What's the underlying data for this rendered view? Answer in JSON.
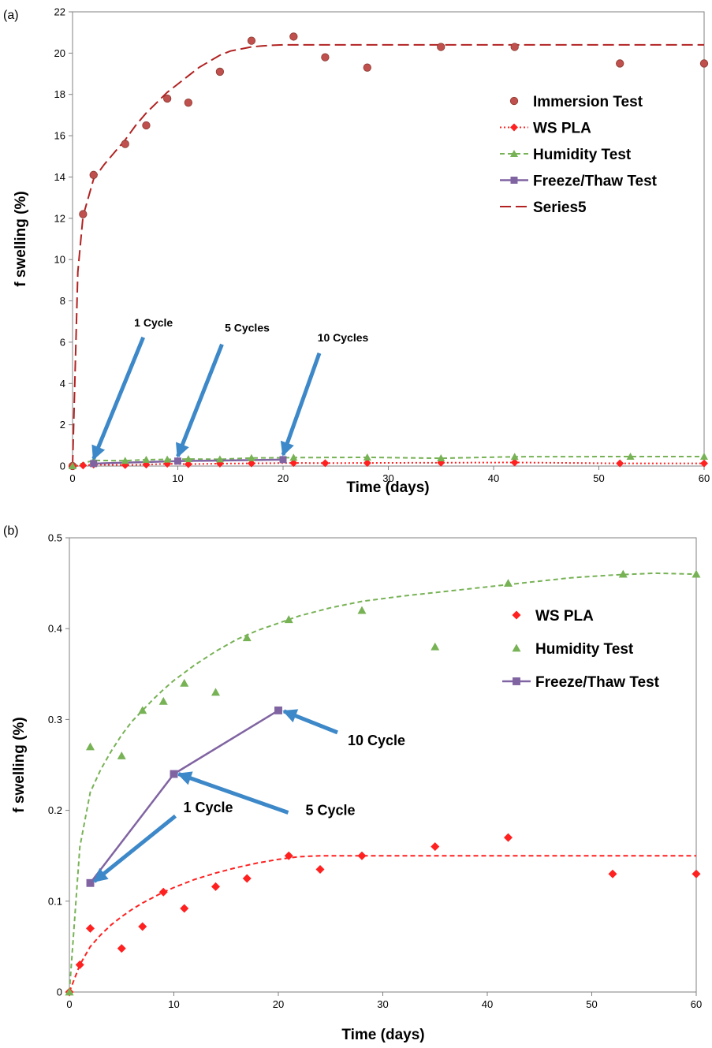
{
  "chart_data": [
    {
      "panel_label": "(a)",
      "type": "scatter",
      "xlabel": "Time (days)",
      "ylabel": "f swelling (%)",
      "xlim": [
        0,
        60
      ],
      "ylim": [
        0,
        22
      ],
      "xticks": [
        0,
        10,
        20,
        30,
        40,
        50,
        60
      ],
      "yticks": [
        0,
        2,
        4,
        6,
        8,
        10,
        12,
        14,
        16,
        18,
        20,
        22
      ],
      "grid": false,
      "legend_position": "right",
      "series": [
        {
          "name": "Immersion Test",
          "kind": "scatter",
          "marker": "circle",
          "color": "#c0504d",
          "x": [
            0,
            1,
            2,
            5,
            7,
            9,
            11,
            14,
            17,
            21,
            24,
            28,
            35,
            42,
            52,
            60
          ],
          "y": [
            0,
            12.2,
            14.1,
            15.6,
            16.5,
            17.8,
            17.6,
            19.1,
            20.6,
            20.8,
            19.8,
            19.3,
            20.3,
            20.3,
            19.5,
            19.5
          ]
        },
        {
          "name": "WS PLA",
          "kind": "line-marker",
          "marker": "diamond",
          "dash": "dotted",
          "color": "#ff2020",
          "x": [
            0,
            1,
            2,
            5,
            7,
            9,
            11,
            14,
            17,
            21,
            24,
            28,
            35,
            42,
            52,
            60
          ],
          "y": [
            0,
            0.03,
            0.07,
            0.05,
            0.07,
            0.11,
            0.09,
            0.12,
            0.13,
            0.15,
            0.14,
            0.15,
            0.16,
            0.17,
            0.13,
            0.13
          ]
        },
        {
          "name": "Humidity Test",
          "kind": "line-marker",
          "marker": "triangle",
          "dash": "dashed",
          "color": "#77b255",
          "x": [
            0,
            2,
            5,
            7,
            9,
            11,
            14,
            17,
            21,
            28,
            35,
            42,
            53,
            60
          ],
          "y": [
            0,
            0.27,
            0.26,
            0.31,
            0.32,
            0.34,
            0.33,
            0.39,
            0.41,
            0.42,
            0.38,
            0.45,
            0.46,
            0.46
          ]
        },
        {
          "name": "Freeze/Thaw Test",
          "kind": "line-marker",
          "marker": "square",
          "dash": "solid",
          "color": "#8064a2",
          "x": [
            2,
            10,
            20
          ],
          "y": [
            0.12,
            0.24,
            0.31
          ]
        },
        {
          "name": "Series5",
          "kind": "line",
          "dash": "longdash",
          "color": "#b22222",
          "x": [
            0,
            0.5,
            1,
            2,
            3,
            4,
            5,
            6,
            7,
            8,
            9,
            10,
            11,
            12,
            13,
            14,
            15,
            16,
            17,
            18,
            19,
            20,
            21,
            22,
            23,
            24,
            25,
            26,
            60
          ],
          "y": [
            0,
            9.4,
            12.1,
            13.9,
            14.6,
            15.2,
            15.8,
            16.5,
            17.1,
            17.6,
            18.1,
            18.5,
            18.9,
            19.3,
            19.6,
            19.9,
            20.1,
            20.2,
            20.3,
            20.35,
            20.38,
            20.4,
            20.4,
            20.4,
            20.4,
            20.4,
            20.4,
            20.4,
            20.4
          ]
        }
      ],
      "annotations": [
        {
          "text": "1 Cycle",
          "x": 2,
          "y": 0.12
        },
        {
          "text": "5 Cycles",
          "x": 10,
          "y": 0.24
        },
        {
          "text": "10 Cycles",
          "x": 20,
          "y": 0.31
        }
      ]
    },
    {
      "panel_label": "(b)",
      "type": "scatter",
      "xlabel": "Time (days)",
      "ylabel": "f swelling (%)",
      "xlim": [
        0,
        60
      ],
      "ylim": [
        0,
        0.5
      ],
      "xticks": [
        0,
        10,
        20,
        30,
        40,
        50,
        60
      ],
      "yticks": [
        0,
        0.1,
        0.2,
        0.3,
        0.4,
        0.5
      ],
      "grid": false,
      "legend_position": "right",
      "series": [
        {
          "name": "WS PLA",
          "kind": "scatter",
          "marker": "diamond",
          "color": "#ff2020",
          "x": [
            0,
            1,
            2,
            5,
            7,
            9,
            11,
            14,
            17,
            21,
            24,
            28,
            35,
            42,
            52,
            60
          ],
          "y": [
            0,
            0.03,
            0.07,
            0.048,
            0.072,
            0.11,
            0.092,
            0.116,
            0.125,
            0.15,
            0.135,
            0.15,
            0.16,
            0.17,
            0.13,
            0.13
          ]
        },
        {
          "name": "Humidity Test",
          "kind": "scatter",
          "marker": "triangle",
          "color": "#77b255",
          "x": [
            0,
            2,
            5,
            7,
            9,
            11,
            14,
            17,
            21,
            28,
            35,
            42,
            53,
            60
          ],
          "y": [
            0,
            0.27,
            0.26,
            0.31,
            0.32,
            0.34,
            0.33,
            0.39,
            0.41,
            0.42,
            0.38,
            0.45,
            0.46,
            0.46
          ]
        },
        {
          "name": "Freeze/Thaw Test",
          "kind": "line-marker",
          "marker": "square",
          "color": "#8064a2",
          "x": [
            2,
            10,
            20
          ],
          "y": [
            0.12,
            0.24,
            0.31
          ]
        },
        {
          "name": "",
          "kind": "line",
          "dash": "dashed",
          "color": "#77b255",
          "x": [
            0,
            1,
            2,
            3,
            4,
            5,
            6,
            7,
            8,
            9,
            10,
            12,
            14,
            16,
            18,
            20,
            22,
            25,
            28,
            32,
            36,
            40,
            44,
            48,
            52,
            56,
            60
          ],
          "y": [
            0,
            0.16,
            0.22,
            0.245,
            0.265,
            0.283,
            0.298,
            0.31,
            0.322,
            0.333,
            0.343,
            0.36,
            0.375,
            0.388,
            0.398,
            0.406,
            0.414,
            0.423,
            0.43,
            0.436,
            0.441,
            0.446,
            0.451,
            0.456,
            0.459,
            0.461,
            0.46
          ]
        },
        {
          "name": "",
          "kind": "line",
          "dash": "dashed",
          "color": "#ff2020",
          "x": [
            0,
            1,
            2,
            3,
            4,
            5,
            6,
            7,
            8,
            9,
            10,
            12,
            14,
            16,
            18,
            20,
            22,
            24,
            25,
            30,
            40,
            50,
            60
          ],
          "y": [
            0,
            0.03,
            0.05,
            0.063,
            0.074,
            0.083,
            0.091,
            0.098,
            0.104,
            0.11,
            0.115,
            0.124,
            0.131,
            0.137,
            0.142,
            0.146,
            0.149,
            0.15,
            0.15,
            0.15,
            0.15,
            0.15,
            0.15
          ]
        }
      ],
      "annotations": [
        {
          "text": "1 Cycle",
          "x": 2,
          "y": 0.12
        },
        {
          "text": "5 Cycle",
          "x": 10,
          "y": 0.24
        },
        {
          "text": "10 Cycle",
          "x": 20,
          "y": 0.31
        }
      ]
    }
  ]
}
